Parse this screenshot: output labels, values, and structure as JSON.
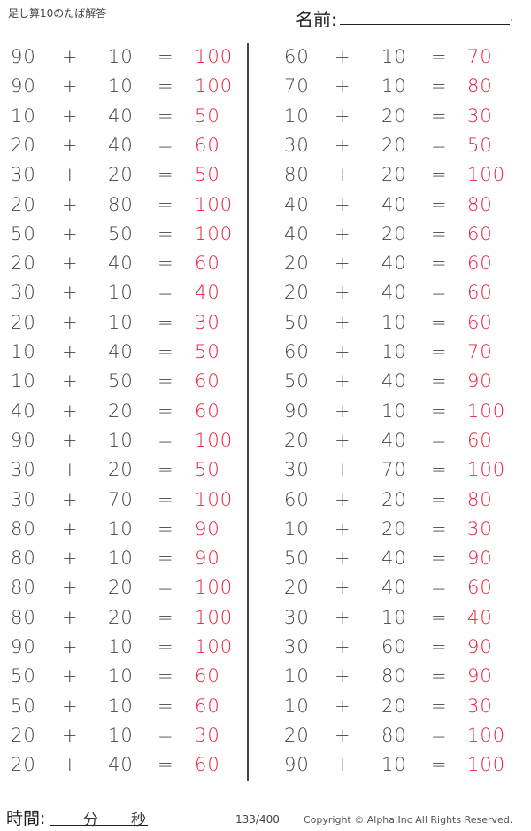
{
  "header": {
    "title": "足し算10のたば解答",
    "name_label": "名前:",
    "name_end": "."
  },
  "colors": {
    "answer": "#e8203c",
    "text": "#444444"
  },
  "left": [
    [
      "90",
      "+",
      "10",
      "=",
      "100"
    ],
    [
      "90",
      "+",
      "10",
      "=",
      "100"
    ],
    [
      "10",
      "+",
      "40",
      "=",
      "50"
    ],
    [
      "20",
      "+",
      "40",
      "=",
      "60"
    ],
    [
      "30",
      "+",
      "20",
      "=",
      "50"
    ],
    [
      "20",
      "+",
      "80",
      "=",
      "100"
    ],
    [
      "50",
      "+",
      "50",
      "=",
      "100"
    ],
    [
      "20",
      "+",
      "40",
      "=",
      "60"
    ],
    [
      "30",
      "+",
      "10",
      "=",
      "40"
    ],
    [
      "20",
      "+",
      "10",
      "=",
      "30"
    ],
    [
      "10",
      "+",
      "40",
      "=",
      "50"
    ],
    [
      "10",
      "+",
      "50",
      "=",
      "60"
    ],
    [
      "40",
      "+",
      "20",
      "=",
      "60"
    ],
    [
      "90",
      "+",
      "10",
      "=",
      "100"
    ],
    [
      "30",
      "+",
      "20",
      "=",
      "50"
    ],
    [
      "30",
      "+",
      "70",
      "=",
      "100"
    ],
    [
      "80",
      "+",
      "10",
      "=",
      "90"
    ],
    [
      "80",
      "+",
      "10",
      "=",
      "90"
    ],
    [
      "80",
      "+",
      "20",
      "=",
      "100"
    ],
    [
      "80",
      "+",
      "20",
      "=",
      "100"
    ],
    [
      "90",
      "+",
      "10",
      "=",
      "100"
    ],
    [
      "50",
      "+",
      "10",
      "=",
      "60"
    ],
    [
      "50",
      "+",
      "10",
      "=",
      "60"
    ],
    [
      "20",
      "+",
      "10",
      "=",
      "30"
    ],
    [
      "20",
      "+",
      "40",
      "=",
      "60"
    ]
  ],
  "right": [
    [
      "60",
      "+",
      "10",
      "=",
      "70"
    ],
    [
      "70",
      "+",
      "10",
      "=",
      "80"
    ],
    [
      "10",
      "+",
      "20",
      "=",
      "30"
    ],
    [
      "30",
      "+",
      "20",
      "=",
      "50"
    ],
    [
      "80",
      "+",
      "20",
      "=",
      "100"
    ],
    [
      "40",
      "+",
      "40",
      "=",
      "80"
    ],
    [
      "40",
      "+",
      "20",
      "=",
      "60"
    ],
    [
      "20",
      "+",
      "40",
      "=",
      "60"
    ],
    [
      "20",
      "+",
      "40",
      "=",
      "60"
    ],
    [
      "50",
      "+",
      "10",
      "=",
      "60"
    ],
    [
      "60",
      "+",
      "10",
      "=",
      "70"
    ],
    [
      "50",
      "+",
      "40",
      "=",
      "90"
    ],
    [
      "90",
      "+",
      "10",
      "=",
      "100"
    ],
    [
      "20",
      "+",
      "40",
      "=",
      "60"
    ],
    [
      "30",
      "+",
      "70",
      "=",
      "100"
    ],
    [
      "60",
      "+",
      "20",
      "=",
      "80"
    ],
    [
      "10",
      "+",
      "20",
      "=",
      "30"
    ],
    [
      "50",
      "+",
      "40",
      "=",
      "90"
    ],
    [
      "20",
      "+",
      "40",
      "=",
      "60"
    ],
    [
      "30",
      "+",
      "10",
      "=",
      "40"
    ],
    [
      "30",
      "+",
      "60",
      "=",
      "90"
    ],
    [
      "10",
      "+",
      "80",
      "=",
      "90"
    ],
    [
      "10",
      "+",
      "20",
      "=",
      "30"
    ],
    [
      "20",
      "+",
      "80",
      "=",
      "100"
    ],
    [
      "90",
      "+",
      "10",
      "=",
      "100"
    ]
  ],
  "footer": {
    "time_label": "時間:",
    "minutes": "分",
    "seconds": "秒",
    "page": "133/400",
    "copyright": "Copyright ©  Alpha.Inc All Rights Reserved."
  }
}
